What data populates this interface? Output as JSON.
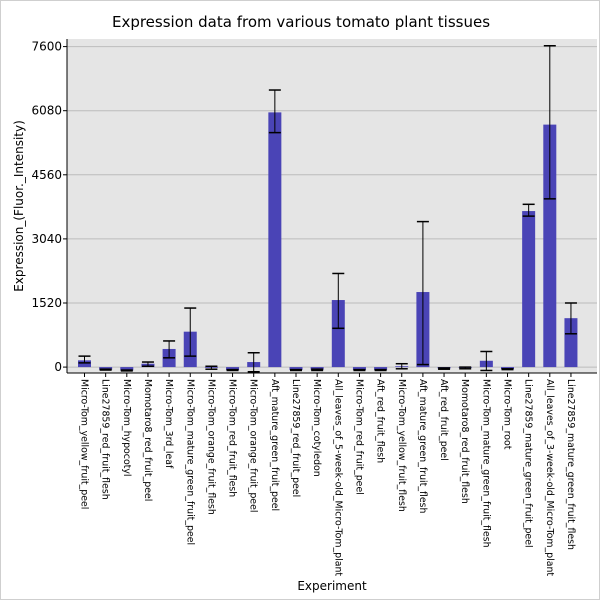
{
  "chart_data": {
    "type": "bar",
    "title": "Expression data from various tomato plant tissues",
    "xlabel": "Experiment",
    "ylabel": "Expression_(Fluor._Intensity)",
    "ylim": [
      -140,
      7780
    ],
    "yticks": [
      0,
      1520,
      3040,
      4560,
      6080,
      7600
    ],
    "ytick_labels": [
      "0",
      "1520",
      "3040",
      "4560",
      "6080",
      "7600"
    ],
    "grid": true,
    "bar_color": "#4a44b6",
    "background_color": "#e5e5e5",
    "categories": [
      "Micro-Tom_yellow_fruit_peel",
      "Line27859_red_fruit_flesh",
      "Micro-Tom_hypocotyl",
      "Momotaro8_red_fruit_peel",
      "Micro-Tom_3rd_leaf",
      "Micro-Tom_mature_green_fruit_peel",
      "Micro-Tom_orange_fruit_flesh",
      "Micro-Tom_red_fruit_flesh",
      "Micro-Tom_orange_fruit_peel",
      "Aft_mature_green_fruit_peel",
      "Line27859_red_fruit_peel",
      "Micro-Tom_cotyledon",
      "All_leaves_of_5-week-old_Micro-Tom_plant",
      "Micro-Tom_red_fruit_peel",
      "Aft_red_fruit_flesh",
      "Micro-Tom_yellow_fruit_flesh",
      "Aft_mature_green_fruit_flesh",
      "Aft_red_fruit_peel",
      "Momotaro8_red_fruit_flesh",
      "Micro-Tom_mature_green_fruit_flesh",
      "Micro-Tom_root",
      "Line27859_mature_green_fruit_peel",
      "All_leaves_of_3-week-old_Micro-Tom_plant",
      "Line27859_mature_green_fruit_flesh"
    ],
    "values": [
      160,
      -60,
      -80,
      80,
      430,
      840,
      -10,
      -70,
      120,
      6040,
      -70,
      -60,
      1590,
      -70,
      -70,
      20,
      1780,
      -30,
      -20,
      150,
      -50,
      3700,
      5750,
      1160
    ],
    "error_low": [
      100,
      -70,
      -90,
      20,
      220,
      260,
      -50,
      -80,
      -110,
      5560,
      -80,
      -80,
      920,
      -80,
      -80,
      -40,
      60,
      -50,
      -40,
      -80,
      -60,
      3580,
      3990,
      790
    ],
    "error_high": [
      260,
      -50,
      -70,
      120,
      620,
      1400,
      20,
      -60,
      340,
      6570,
      -60,
      -50,
      2220,
      -60,
      -60,
      80,
      3450,
      -20,
      0,
      370,
      -40,
      3860,
      7620,
      1520
    ]
  }
}
